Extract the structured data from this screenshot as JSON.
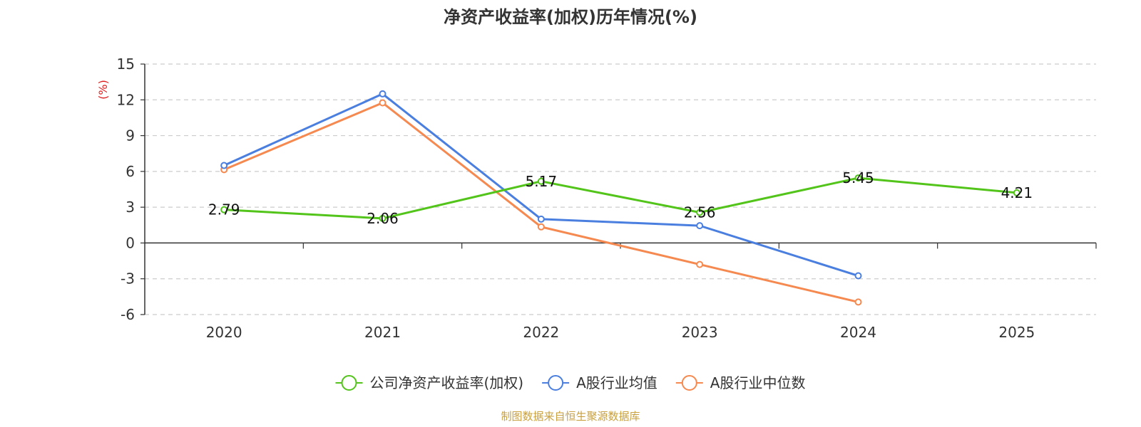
{
  "chart_data": {
    "type": "line",
    "title": "净资产收益率(加权)历年情况(%)",
    "ylabel": "(%)",
    "xlabel": "",
    "categories": [
      "2020",
      "2021",
      "2022",
      "2023",
      "2024",
      "2025"
    ],
    "ylim": [
      -6,
      15
    ],
    "yticks": [
      15,
      12,
      9,
      6,
      3,
      0,
      -3,
      -6
    ],
    "grid": true,
    "legend_position": "bottom-center",
    "series": [
      {
        "name": "公司净资产收益率(加权)",
        "color": "#52c41a",
        "values": [
          2.79,
          2.06,
          5.17,
          2.56,
          5.45,
          4.21
        ],
        "labels": [
          "2.79",
          "2.06",
          "5.17",
          "2.56",
          "5.45",
          "4.21"
        ]
      },
      {
        "name": "A股行业均值",
        "color": "#4a7fe0",
        "values": [
          6.5,
          12.5,
          2.0,
          1.45,
          -2.75,
          null
        ]
      },
      {
        "name": "A股行业中位数",
        "color": "#f5894f",
        "values": [
          6.15,
          11.75,
          1.35,
          -1.8,
          -4.95,
          null
        ]
      }
    ],
    "source": "制图数据来自恒生聚源数据库"
  }
}
